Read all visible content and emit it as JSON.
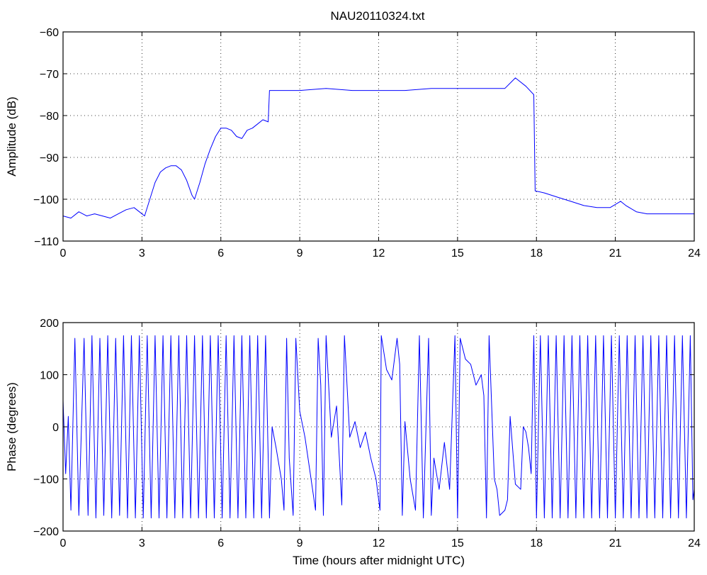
{
  "figure_title": "NAU20110324.txt",
  "colors": {
    "series": "#0000ff",
    "axes": "#000000",
    "background": "#ffffff"
  },
  "chart_data": [
    {
      "type": "line",
      "title": "NAU20110324.txt",
      "xlabel": "",
      "ylabel": "Amplitude (dB)",
      "xlim": [
        0,
        24
      ],
      "ylim": [
        -110,
        -60
      ],
      "xticks": [
        0,
        3,
        6,
        9,
        12,
        15,
        18,
        21,
        24
      ],
      "yticks": [
        -110,
        -100,
        -90,
        -80,
        -70,
        -60
      ],
      "grid": true,
      "series": [
        {
          "points": [
            [
              0,
              -104
            ],
            [
              0.3,
              -104.5
            ],
            [
              0.6,
              -103
            ],
            [
              0.9,
              -104
            ],
            [
              1.2,
              -103.5
            ],
            [
              1.5,
              -104
            ],
            [
              1.8,
              -104.5
            ],
            [
              2.1,
              -103.5
            ],
            [
              2.4,
              -102.5
            ],
            [
              2.7,
              -102
            ],
            [
              2.9,
              -103
            ],
            [
              3.1,
              -104
            ],
            [
              3.3,
              -100
            ],
            [
              3.5,
              -96
            ],
            [
              3.7,
              -93.5
            ],
            [
              3.9,
              -92.5
            ],
            [
              4.1,
              -92
            ],
            [
              4.3,
              -92
            ],
            [
              4.5,
              -93
            ],
            [
              4.7,
              -95.5
            ],
            [
              4.9,
              -99
            ],
            [
              5.0,
              -100
            ],
            [
              5.2,
              -96
            ],
            [
              5.4,
              -91.5
            ],
            [
              5.6,
              -88
            ],
            [
              5.8,
              -85
            ],
            [
              6.0,
              -83
            ],
            [
              6.2,
              -83
            ],
            [
              6.4,
              -83.5
            ],
            [
              6.6,
              -85
            ],
            [
              6.8,
              -85.5
            ],
            [
              7.0,
              -83.5
            ],
            [
              7.2,
              -83
            ],
            [
              7.4,
              -82
            ],
            [
              7.6,
              -81
            ],
            [
              7.8,
              -81.5
            ],
            [
              7.85,
              -74
            ],
            [
              8.2,
              -74
            ],
            [
              9,
              -74
            ],
            [
              10,
              -73.5
            ],
            [
              11,
              -74
            ],
            [
              12,
              -74
            ],
            [
              13,
              -74
            ],
            [
              14,
              -73.5
            ],
            [
              15,
              -73.5
            ],
            [
              16,
              -73.5
            ],
            [
              16.8,
              -73.5
            ],
            [
              17.2,
              -71
            ],
            [
              17.6,
              -73
            ],
            [
              17.9,
              -75
            ],
            [
              17.95,
              -98
            ],
            [
              18.3,
              -98.5
            ],
            [
              18.8,
              -99.5
            ],
            [
              19.3,
              -100.5
            ],
            [
              19.8,
              -101.5
            ],
            [
              20.3,
              -102
            ],
            [
              20.8,
              -102
            ],
            [
              21.2,
              -100.5
            ],
            [
              21.4,
              -101.5
            ],
            [
              21.8,
              -103
            ],
            [
              22.2,
              -103.5
            ],
            [
              22.8,
              -103.5
            ],
            [
              23.3,
              -103.5
            ],
            [
              23.7,
              -103.5
            ],
            [
              24,
              -103.5
            ]
          ]
        }
      ]
    },
    {
      "type": "line",
      "title": "",
      "xlabel": "Time (hours after midnight UTC)",
      "ylabel": "Phase (degrees)",
      "xlim": [
        0,
        24
      ],
      "ylim": [
        -200,
        200
      ],
      "xticks": [
        0,
        3,
        6,
        9,
        12,
        15,
        18,
        21,
        24
      ],
      "yticks": [
        -200,
        -100,
        0,
        100,
        200
      ],
      "grid": true,
      "series": [
        {
          "points": [
            [
              0,
              50
            ],
            [
              0.1,
              -90
            ],
            [
              0.2,
              20
            ],
            [
              0.3,
              -160
            ],
            [
              0.45,
              170
            ],
            [
              0.6,
              -170
            ],
            [
              0.8,
              170
            ],
            [
              0.95,
              -170
            ],
            [
              1.1,
              175
            ],
            [
              1.25,
              -175
            ],
            [
              1.4,
              170
            ],
            [
              1.55,
              -170
            ],
            [
              1.7,
              175
            ],
            [
              1.85,
              -175
            ],
            [
              2.0,
              170
            ],
            [
              2.15,
              -170
            ],
            [
              2.3,
              175
            ],
            [
              2.45,
              -175
            ],
            [
              2.6,
              175
            ],
            [
              2.75,
              -175
            ],
            [
              2.9,
              175
            ],
            [
              3.05,
              -175
            ],
            [
              3.2,
              175
            ],
            [
              3.35,
              -175
            ],
            [
              3.5,
              175
            ],
            [
              3.65,
              -175
            ],
            [
              3.8,
              175
            ],
            [
              3.95,
              -175
            ],
            [
              4.1,
              175
            ],
            [
              4.25,
              -175
            ],
            [
              4.4,
              175
            ],
            [
              4.55,
              -175
            ],
            [
              4.7,
              175
            ],
            [
              4.85,
              -175
            ],
            [
              5.0,
              175
            ],
            [
              5.15,
              -175
            ],
            [
              5.3,
              175
            ],
            [
              5.45,
              -175
            ],
            [
              5.6,
              175
            ],
            [
              5.75,
              -175
            ],
            [
              5.9,
              175
            ],
            [
              6.05,
              -175
            ],
            [
              6.2,
              175
            ],
            [
              6.35,
              -175
            ],
            [
              6.5,
              175
            ],
            [
              6.65,
              -175
            ],
            [
              6.8,
              175
            ],
            [
              6.95,
              -175
            ],
            [
              7.1,
              175
            ],
            [
              7.25,
              -175
            ],
            [
              7.4,
              175
            ],
            [
              7.55,
              -175
            ],
            [
              7.7,
              175
            ],
            [
              7.85,
              -175
            ],
            [
              7.95,
              0
            ],
            [
              8.1,
              -40
            ],
            [
              8.3,
              -100
            ],
            [
              8.4,
              -160
            ],
            [
              8.5,
              170
            ],
            [
              8.6,
              -60
            ],
            [
              8.75,
              -170
            ],
            [
              8.85,
              170
            ],
            [
              9.0,
              30
            ],
            [
              9.2,
              -20
            ],
            [
              9.4,
              -90
            ],
            [
              9.6,
              -160
            ],
            [
              9.7,
              170
            ],
            [
              9.8,
              80
            ],
            [
              9.9,
              -170
            ],
            [
              10.0,
              175
            ],
            [
              10.2,
              -20
            ],
            [
              10.4,
              40
            ],
            [
              10.6,
              -150
            ],
            [
              10.7,
              175
            ],
            [
              10.9,
              -20
            ],
            [
              11.1,
              10
            ],
            [
              11.3,
              -40
            ],
            [
              11.5,
              -10
            ],
            [
              11.7,
              -60
            ],
            [
              11.9,
              -100
            ],
            [
              12.05,
              -160
            ],
            [
              12.1,
              175
            ],
            [
              12.3,
              110
            ],
            [
              12.5,
              90
            ],
            [
              12.7,
              170
            ],
            [
              12.8,
              120
            ],
            [
              12.9,
              -170
            ],
            [
              13.0,
              10
            ],
            [
              13.2,
              -100
            ],
            [
              13.4,
              -160
            ],
            [
              13.55,
              175
            ],
            [
              13.7,
              -175
            ],
            [
              13.9,
              170
            ],
            [
              14.0,
              -170
            ],
            [
              14.1,
              -60
            ],
            [
              14.3,
              -120
            ],
            [
              14.5,
              -30
            ],
            [
              14.7,
              -120
            ],
            [
              14.9,
              175
            ],
            [
              15.0,
              -175
            ],
            [
              15.1,
              170
            ],
            [
              15.3,
              130
            ],
            [
              15.5,
              120
            ],
            [
              15.7,
              80
            ],
            [
              15.9,
              100
            ],
            [
              16.0,
              60
            ],
            [
              16.1,
              -175
            ],
            [
              16.2,
              175
            ],
            [
              16.4,
              -100
            ],
            [
              16.5,
              -120
            ],
            [
              16.6,
              -170
            ],
            [
              16.8,
              -160
            ],
            [
              16.9,
              -140
            ],
            [
              17.0,
              20
            ],
            [
              17.2,
              -110
            ],
            [
              17.4,
              -120
            ],
            [
              17.5,
              0
            ],
            [
              17.6,
              -10
            ],
            [
              17.7,
              -40
            ],
            [
              17.8,
              -90
            ],
            [
              17.9,
              175
            ],
            [
              18.0,
              -175
            ],
            [
              18.15,
              175
            ],
            [
              18.3,
              -175
            ],
            [
              18.45,
              175
            ],
            [
              18.6,
              -175
            ],
            [
              18.75,
              175
            ],
            [
              18.9,
              -175
            ],
            [
              19.05,
              175
            ],
            [
              19.2,
              -175
            ],
            [
              19.35,
              175
            ],
            [
              19.5,
              -175
            ],
            [
              19.65,
              175
            ],
            [
              19.8,
              -175
            ],
            [
              19.95,
              175
            ],
            [
              20.1,
              -175
            ],
            [
              20.25,
              175
            ],
            [
              20.4,
              -175
            ],
            [
              20.55,
              175
            ],
            [
              20.7,
              -175
            ],
            [
              20.85,
              175
            ],
            [
              21.0,
              -175
            ],
            [
              21.15,
              175
            ],
            [
              21.3,
              -175
            ],
            [
              21.45,
              175
            ],
            [
              21.6,
              -175
            ],
            [
              21.75,
              175
            ],
            [
              21.9,
              -175
            ],
            [
              22.05,
              175
            ],
            [
              22.2,
              -175
            ],
            [
              22.35,
              175
            ],
            [
              22.5,
              -175
            ],
            [
              22.65,
              175
            ],
            [
              22.8,
              -175
            ],
            [
              22.95,
              175
            ],
            [
              23.1,
              -175
            ],
            [
              23.25,
              175
            ],
            [
              23.4,
              -175
            ],
            [
              23.55,
              175
            ],
            [
              23.7,
              -175
            ],
            [
              23.85,
              175
            ],
            [
              23.95,
              -140
            ],
            [
              24,
              -120
            ]
          ]
        }
      ]
    }
  ]
}
